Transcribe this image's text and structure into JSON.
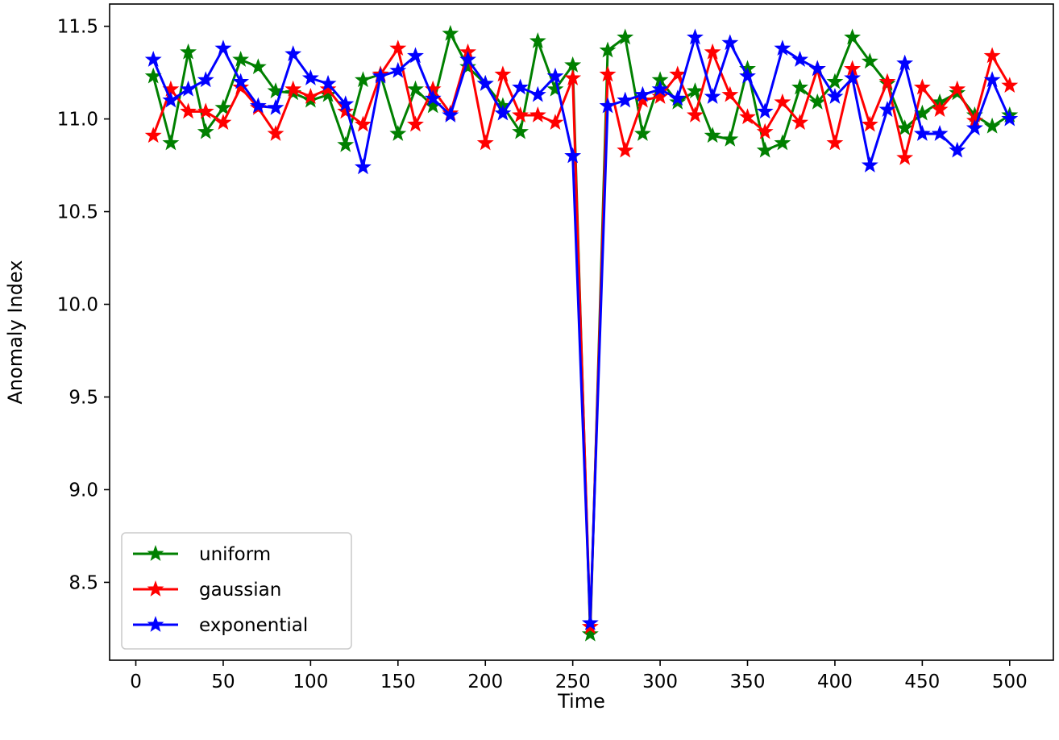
{
  "chart_data": {
    "type": "line",
    "title": "",
    "xlabel": "Time",
    "ylabel": "Anomaly Index",
    "xlim": [
      -15,
      525
    ],
    "ylim": [
      8.08,
      11.62
    ],
    "x_ticks": [
      0,
      50,
      100,
      150,
      200,
      250,
      300,
      350,
      400,
      450,
      500
    ],
    "x_tick_labels": [
      "0",
      "50",
      "100",
      "150",
      "200",
      "250",
      "300",
      "350",
      "400",
      "450",
      "500"
    ],
    "y_ticks": [
      8.5,
      9.0,
      9.5,
      10.0,
      10.5,
      11.0,
      11.5
    ],
    "y_tick_labels": [
      "8.5",
      "9.0",
      "9.5",
      "10.0",
      "10.5",
      "11.0",
      "11.5"
    ],
    "grid": false,
    "legend_position": "lower-left",
    "marker": "star",
    "x": [
      10,
      20,
      30,
      40,
      50,
      60,
      70,
      80,
      90,
      100,
      110,
      120,
      130,
      140,
      150,
      160,
      170,
      180,
      190,
      200,
      210,
      220,
      230,
      240,
      250,
      260,
      270,
      280,
      290,
      300,
      310,
      320,
      330,
      340,
      350,
      360,
      370,
      380,
      390,
      400,
      410,
      420,
      430,
      440,
      450,
      460,
      470,
      480,
      490,
      500
    ],
    "series": [
      {
        "name": "uniform",
        "color": "#008000",
        "values": [
          11.23,
          10.87,
          11.36,
          10.93,
          11.06,
          11.32,
          11.28,
          11.15,
          11.14,
          11.1,
          11.13,
          10.86,
          11.21,
          11.24,
          10.92,
          11.16,
          11.07,
          11.46,
          11.28,
          11.19,
          11.07,
          10.93,
          11.42,
          11.16,
          11.29,
          8.22,
          11.37,
          11.44,
          10.92,
          11.21,
          11.09,
          11.15,
          10.91,
          10.89,
          11.27,
          10.83,
          10.87,
          11.17,
          11.09,
          11.2,
          11.44,
          11.31,
          11.19,
          10.95,
          11.03,
          11.09,
          11.14,
          11.02,
          10.96,
          11.02
        ]
      },
      {
        "name": "gaussian",
        "color": "#ff0000",
        "values": [
          10.91,
          11.16,
          11.04,
          11.04,
          10.98,
          11.17,
          11.06,
          10.92,
          11.16,
          11.12,
          11.16,
          11.04,
          10.97,
          11.24,
          11.38,
          10.97,
          11.16,
          11.03,
          11.36,
          10.87,
          11.24,
          11.02,
          11.02,
          10.98,
          11.22,
          8.26,
          11.24,
          10.83,
          11.1,
          11.12,
          11.24,
          11.02,
          11.36,
          11.13,
          11.01,
          10.93,
          11.09,
          10.98,
          11.27,
          10.87,
          11.27,
          10.97,
          11.2,
          10.79,
          11.17,
          11.05,
          11.16,
          10.99,
          11.34,
          11.18
        ]
      },
      {
        "name": "exponential",
        "color": "#0000ff",
        "values": [
          11.32,
          11.1,
          11.16,
          11.21,
          11.38,
          11.2,
          11.07,
          11.06,
          11.35,
          11.22,
          11.19,
          11.08,
          10.74,
          11.23,
          11.26,
          11.34,
          11.11,
          11.02,
          11.32,
          11.19,
          11.03,
          11.17,
          11.13,
          11.23,
          10.8,
          8.28,
          11.07,
          11.1,
          11.13,
          11.16,
          11.11,
          11.44,
          11.12,
          11.41,
          11.23,
          11.04,
          11.38,
          11.32,
          11.27,
          11.12,
          11.22,
          10.75,
          11.05,
          11.3,
          10.92,
          10.92,
          10.83,
          10.95,
          11.21,
          11.0
        ]
      }
    ]
  }
}
